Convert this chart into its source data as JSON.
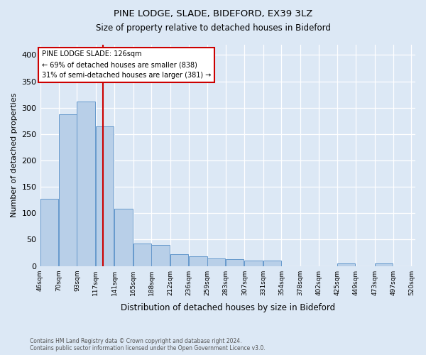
{
  "title1": "PINE LODGE, SLADE, BIDEFORD, EX39 3LZ",
  "title2": "Size of property relative to detached houses in Bideford",
  "xlabel": "Distribution of detached houses by size in Bideford",
  "ylabel": "Number of detached properties",
  "footnote": "Contains HM Land Registry data © Crown copyright and database right 2024.\nContains public sector information licensed under the Open Government Licence v3.0.",
  "bar_color": "#b8cfe8",
  "bar_edge_color": "#6699cc",
  "annotation_text": "PINE LODGE SLADE: 126sqm\n← 69% of detached houses are smaller (838)\n31% of semi-detached houses are larger (381) →",
  "annotation_box_facecolor": "#ffffff",
  "annotation_box_edgecolor": "#cc0000",
  "vline_x": 126,
  "vline_color": "#cc0000",
  "bins_left": [
    46,
    70,
    93,
    117,
    141,
    165,
    188,
    212,
    236,
    259,
    283,
    307,
    331,
    354,
    378,
    402,
    425,
    449,
    473,
    497
  ],
  "bin_width": 23,
  "bar_heights": [
    128,
    288,
    312,
    265,
    108,
    42,
    40,
    22,
    18,
    15,
    13,
    10,
    10,
    0,
    0,
    0,
    5,
    0,
    5,
    0
  ],
  "ylim": [
    0,
    420
  ],
  "yticks": [
    0,
    50,
    100,
    150,
    200,
    250,
    300,
    350,
    400
  ],
  "xtick_labels": [
    "46sqm",
    "70sqm",
    "93sqm",
    "117sqm",
    "141sqm",
    "165sqm",
    "188sqm",
    "212sqm",
    "236sqm",
    "259sqm",
    "283sqm",
    "307sqm",
    "331sqm",
    "354sqm",
    "378sqm",
    "402sqm",
    "425sqm",
    "449sqm",
    "473sqm",
    "497sqm",
    "520sqm"
  ],
  "bg_color": "#dce8f5",
  "grid_color": "#ffffff"
}
